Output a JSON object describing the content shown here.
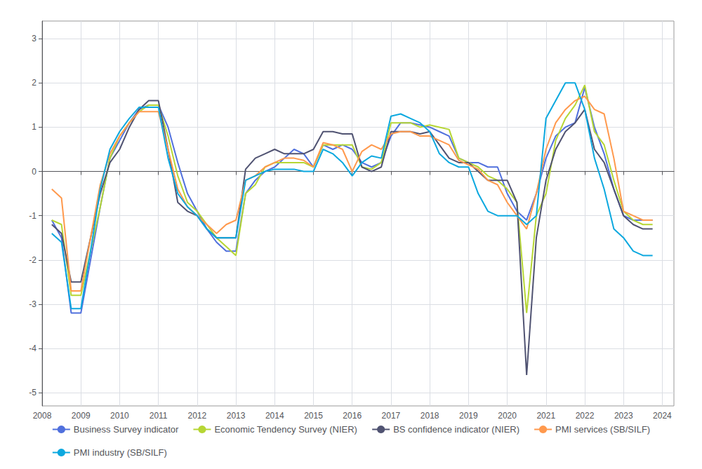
{
  "chart_data": {
    "type": "line",
    "x": [
      2008.25,
      2008.5,
      2008.75,
      2009.0,
      2009.25,
      2009.5,
      2009.75,
      2010.0,
      2010.25,
      2010.5,
      2010.75,
      2011.0,
      2011.25,
      2011.5,
      2011.75,
      2012.0,
      2012.25,
      2012.5,
      2012.75,
      2013.0,
      2013.25,
      2013.5,
      2013.75,
      2014.0,
      2014.25,
      2014.5,
      2014.75,
      2015.0,
      2015.25,
      2015.5,
      2015.75,
      2016.0,
      2016.25,
      2016.5,
      2016.75,
      2017.0,
      2017.25,
      2017.5,
      2017.75,
      2018.0,
      2018.25,
      2018.5,
      2018.75,
      2019.0,
      2019.25,
      2019.5,
      2019.75,
      2020.0,
      2020.25,
      2020.5,
      2020.75,
      2021.0,
      2021.25,
      2021.5,
      2021.75,
      2022.0,
      2022.25,
      2022.5,
      2022.75,
      2023.0,
      2023.25,
      2023.5,
      2023.75
    ],
    "series": [
      {
        "name": "Business Survey indicator",
        "values": [
          -1.1,
          -1.5,
          -3.2,
          -3.2,
          -2.0,
          -0.8,
          0.3,
          0.7,
          1.1,
          1.4,
          1.5,
          1.5,
          1.0,
          0.2,
          -0.5,
          -0.9,
          -1.3,
          -1.6,
          -1.8,
          -1.8,
          -0.5,
          -0.2,
          0.0,
          0.1,
          0.3,
          0.5,
          0.4,
          0.1,
          0.6,
          0.5,
          0.6,
          0.5,
          0.2,
          0.1,
          0.2,
          0.8,
          1.1,
          1.1,
          1.05,
          1.0,
          0.9,
          0.8,
          0.3,
          0.2,
          0.2,
          0.1,
          0.1,
          -0.5,
          -0.9,
          -1.1,
          -0.5,
          0.3,
          0.8,
          1.0,
          1.1,
          1.9,
          1.0,
          0.4,
          -0.4,
          -1.0,
          -1.1,
          -1.1,
          -1.1
        ]
      },
      {
        "name": "Economic Tendency Survey (NIER)",
        "values": [
          -1.1,
          -1.2,
          -2.8,
          -2.8,
          -1.8,
          -0.8,
          0.3,
          0.8,
          1.1,
          1.35,
          1.5,
          1.5,
          0.8,
          -0.1,
          -0.7,
          -0.9,
          -1.2,
          -1.5,
          -1.7,
          -1.9,
          -0.5,
          -0.3,
          0.1,
          0.2,
          0.2,
          0.2,
          0.2,
          0.1,
          0.6,
          0.6,
          0.6,
          0.6,
          0.1,
          0.05,
          0.2,
          1.1,
          1.1,
          1.1,
          1.0,
          1.05,
          1.0,
          0.95,
          0.3,
          0.2,
          0.1,
          -0.1,
          -0.2,
          -0.4,
          -0.7,
          -3.2,
          -1.0,
          -0.5,
          0.7,
          1.2,
          1.5,
          1.95,
          0.9,
          0.6,
          -0.2,
          -0.9,
          -1.1,
          -1.2,
          -1.2
        ]
      },
      {
        "name": "BS confidence indicator (NIER)",
        "values": [
          -1.2,
          -1.4,
          -2.5,
          -2.5,
          -1.5,
          -0.5,
          0.2,
          0.5,
          1.0,
          1.4,
          1.6,
          1.6,
          0.5,
          -0.7,
          -0.9,
          -1.0,
          -1.3,
          -1.5,
          -1.5,
          -1.5,
          0.05,
          0.3,
          0.4,
          0.5,
          0.4,
          0.4,
          0.4,
          0.5,
          0.9,
          0.9,
          0.85,
          0.85,
          0.1,
          0.0,
          0.1,
          0.9,
          0.9,
          0.9,
          0.85,
          0.9,
          0.6,
          0.3,
          0.2,
          0.2,
          0.0,
          -0.2,
          -0.2,
          -0.2,
          -0.7,
          -4.6,
          -1.5,
          -0.2,
          0.5,
          0.9,
          1.1,
          1.4,
          0.5,
          0.2,
          -0.4,
          -1.0,
          -1.2,
          -1.3,
          -1.3
        ]
      },
      {
        "name": "PMI services (SB/SILF)",
        "values": [
          -0.4,
          -0.6,
          -2.7,
          -2.7,
          -1.5,
          -0.3,
          0.4,
          0.8,
          1.1,
          1.35,
          1.35,
          1.35,
          0.5,
          -0.4,
          -0.8,
          -1.0,
          -1.2,
          -1.4,
          -1.2,
          -1.1,
          -0.2,
          -0.1,
          0.1,
          0.2,
          0.3,
          0.3,
          0.25,
          0.1,
          0.65,
          0.6,
          0.5,
          0.0,
          0.45,
          0.6,
          0.5,
          0.85,
          0.9,
          0.9,
          0.8,
          0.8,
          0.7,
          0.6,
          0.25,
          0.15,
          0.05,
          -0.2,
          -0.3,
          -0.7,
          -1.0,
          -1.3,
          -0.5,
          0.5,
          1.1,
          1.4,
          1.6,
          1.7,
          1.4,
          1.3,
          0.3,
          -0.9,
          -1.0,
          -1.1,
          -1.1
        ]
      },
      {
        "name": "PMI industry (SB/SILF)",
        "values": [
          -1.4,
          -1.6,
          -3.1,
          -3.1,
          -1.8,
          -0.4,
          0.5,
          0.9,
          1.2,
          1.45,
          1.45,
          1.45,
          0.3,
          -0.5,
          -0.8,
          -1.0,
          -1.3,
          -1.5,
          -1.5,
          -1.5,
          -0.2,
          -0.1,
          0.0,
          0.05,
          0.05,
          0.05,
          0.0,
          0.0,
          0.5,
          0.4,
          0.2,
          -0.1,
          0.2,
          0.35,
          0.3,
          1.25,
          1.3,
          1.2,
          1.1,
          0.9,
          0.4,
          0.2,
          0.1,
          0.1,
          -0.5,
          -0.9,
          -1.0,
          -1.0,
          -1.0,
          -1.2,
          -1.0,
          1.2,
          1.6,
          2.0,
          2.0,
          1.4,
          0.3,
          -0.4,
          -1.3,
          -1.5,
          -1.8,
          -1.9,
          -1.9
        ]
      }
    ],
    "xlim": [
      2008.0,
      2024.3
    ],
    "xticks": [
      2008,
      2009,
      2010,
      2011,
      2012,
      2013,
      2014,
      2015,
      2016,
      2017,
      2018,
      2019,
      2020,
      2021,
      2022,
      2023,
      2024
    ],
    "ylim": [
      -5.3,
      3.4
    ],
    "yticks": [
      -5,
      -4,
      -3,
      -2,
      -1,
      0,
      1,
      2,
      3
    ],
    "grid": true,
    "legend": "bottom"
  }
}
